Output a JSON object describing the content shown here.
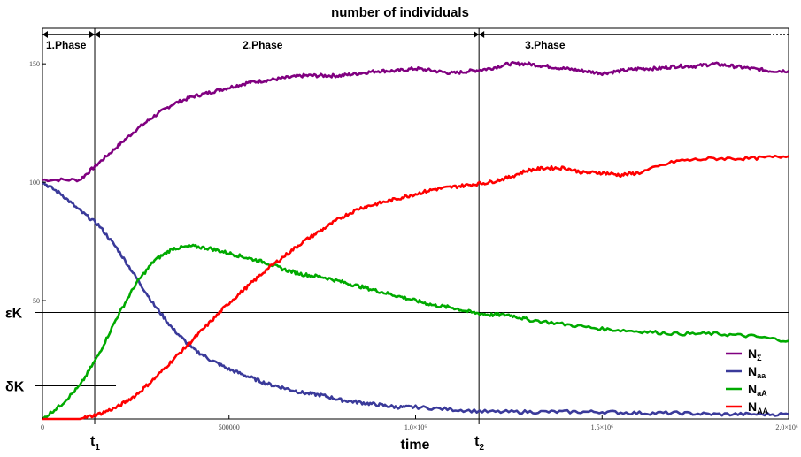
{
  "chart_data": {
    "type": "line",
    "title": "number of individuals",
    "xlabel": "time",
    "ylabel": "",
    "xlim": [
      0,
      2000000
    ],
    "ylim": [
      0,
      165
    ],
    "x_ticks": [
      {
        "value": 0,
        "label": "0"
      },
      {
        "value": 500000,
        "label": "500000"
      },
      {
        "value": 1000000,
        "label": "1.0×10⁶"
      },
      {
        "value": 1500000,
        "label": "1.5×10⁶"
      },
      {
        "value": 2000000,
        "label": "2.0×10⁶"
      }
    ],
    "y_ticks": [
      {
        "value": 50,
        "label": "50"
      },
      {
        "value": 100,
        "label": "100"
      },
      {
        "value": 150,
        "label": "150"
      }
    ],
    "legend_position": "bottom-right",
    "series": [
      {
        "name": "N_Σ",
        "label_main": "N",
        "label_sub": "Σ",
        "color": "#800080",
        "x": [
          0,
          100000,
          150000,
          200000,
          250000,
          300000,
          350000,
          400000,
          450000,
          500000,
          550000,
          600000,
          650000,
          700000,
          750000,
          800000,
          850000,
          900000,
          950000,
          1000000,
          1050000,
          1100000,
          1150000,
          1200000,
          1250000,
          1300000,
          1350000,
          1400000,
          1450000,
          1500000,
          1550000,
          1600000,
          1650000,
          1700000,
          1750000,
          1800000,
          1850000,
          1900000,
          1950000,
          2000000
        ],
        "y": [
          101,
          101,
          108,
          115,
          122,
          128,
          133,
          136,
          138,
          140,
          142,
          143,
          144,
          145,
          145,
          145,
          146,
          147,
          147,
          148,
          147,
          146,
          147,
          148,
          150,
          150,
          149,
          148,
          147,
          146,
          147,
          148,
          148,
          149,
          149,
          150,
          149,
          148,
          147,
          147
        ]
      },
      {
        "name": "N_aa",
        "label_main": "N",
        "label_sub": "aa",
        "color": "#3a3a9a",
        "x": [
          0,
          50000,
          100000,
          150000,
          200000,
          250000,
          300000,
          350000,
          400000,
          450000,
          500000,
          550000,
          600000,
          650000,
          700000,
          750000,
          800000,
          850000,
          900000,
          950000,
          1000000,
          1100000,
          1200000,
          1300000,
          1400000,
          1500000,
          1600000,
          1700000,
          1800000,
          1900000,
          2000000
        ],
        "y": [
          100,
          95,
          88,
          82,
          72,
          60,
          48,
          38,
          30,
          25,
          21,
          18,
          15,
          13,
          11,
          10,
          8,
          7,
          6,
          5,
          5,
          4,
          3,
          3,
          3,
          3,
          2.5,
          2.5,
          2,
          2,
          2
        ]
      },
      {
        "name": "N_aA",
        "label_main": "N",
        "label_sub": "aA",
        "color": "#00aa00",
        "x": [
          0,
          50000,
          100000,
          150000,
          200000,
          250000,
          300000,
          350000,
          400000,
          450000,
          500000,
          550000,
          600000,
          650000,
          700000,
          750000,
          800000,
          850000,
          900000,
          950000,
          1000000,
          1050000,
          1100000,
          1150000,
          1200000,
          1250000,
          1300000,
          1400000,
          1500000,
          1600000,
          1700000,
          1800000,
          1900000,
          2000000
        ],
        "y": [
          0,
          6,
          14,
          27,
          43,
          57,
          67,
          72,
          73,
          72,
          70,
          68,
          66,
          63,
          61,
          60,
          58,
          56,
          54,
          52,
          50,
          48,
          47,
          45,
          44,
          44,
          42,
          40,
          38,
          37,
          36,
          36,
          35,
          33
        ]
      },
      {
        "name": "N_AA",
        "label_main": "N",
        "label_sub": "AA",
        "color": "#ff0000",
        "x": [
          0,
          100000,
          150000,
          200000,
          250000,
          300000,
          350000,
          400000,
          450000,
          500000,
          550000,
          600000,
          650000,
          700000,
          750000,
          800000,
          850000,
          900000,
          950000,
          1000000,
          1050000,
          1100000,
          1150000,
          1200000,
          1250000,
          1300000,
          1350000,
          1400000,
          1450000,
          1500000,
          1550000,
          1600000,
          1700000,
          1800000,
          1900000,
          2000000
        ],
        "y": [
          0,
          0,
          2,
          5,
          10,
          17,
          25,
          33,
          41,
          49,
          56,
          63,
          69,
          75,
          80,
          85,
          89,
          91,
          93,
          95,
          97,
          98,
          99,
          100,
          102,
          105,
          106,
          106,
          104,
          104,
          103,
          104,
          109,
          110,
          110,
          111
        ]
      }
    ],
    "phase_boundaries": [
      {
        "value": 140000,
        "label": "t",
        "sub": "1"
      },
      {
        "value": 1170000,
        "label": "t",
        "sub": "2"
      }
    ],
    "phases": [
      "1.Phase",
      "2.Phase",
      "3.Phase"
    ],
    "reference_lines": [
      {
        "value": 45,
        "label": "εK",
        "extent": "full"
      },
      {
        "value": 14,
        "label": "δK",
        "extent": "to_t1"
      }
    ]
  }
}
